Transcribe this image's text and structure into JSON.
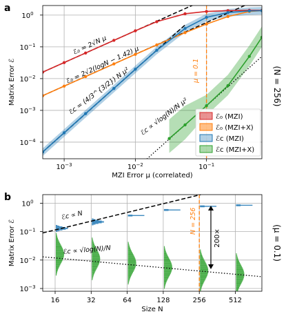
{
  "panel_a": {
    "letter": "a",
    "side_note": "(N = 256)",
    "xlabel": "MZI Error μ (correlated)",
    "ylabel": "Matrix Error ℰ",
    "mu_label": "μ = 0.1",
    "ann_e0_1": "ℰ₀ = 2√N μ",
    "ann_e0_2": "ℰ₀ = 2√2(logN − 1.42) μ",
    "ann_ec_1": "ℰc = (4/3^{3/2}) N μ²",
    "ann_ec_2": "ℰc ∝ √log(N)/N μ²",
    "legend": [
      "ℰ₀ (MZI)",
      "ℰ₀ (MZI+X)",
      "ℰc (MZI)",
      "ℰc (MZI+X)"
    ]
  },
  "panel_b": {
    "letter": "b",
    "side_note": "(μ = 0.1)",
    "xlabel": "Size N",
    "ylabel": "Matrix Error ℰ",
    "ann_lin": "ℰc ∝ N",
    "ann_sqrt": "ℰc ∝ √log(N)/N",
    "n256_label": "N = 256",
    "ratio_label": "200×"
  },
  "colors": {
    "red": "#d62728",
    "orange": "#ff7f0e",
    "blue": "#1f77b4",
    "green": "#2ca02c"
  },
  "chart_data": [
    {
      "type": "line",
      "title": "",
      "xlabel": "MZI Error μ (correlated)",
      "ylabel": "Matrix Error ℰ",
      "xscale": "log",
      "yscale": "log",
      "xlim": [
        0.0005,
        0.6
      ],
      "ylim": [
        3e-05,
        2
      ],
      "grid": true,
      "legend_position": "lower-right",
      "series": [
        {
          "name": "ℰ₀ (MZI)",
          "color": "#d62728",
          "x": [
            0.0005,
            0.001,
            0.002,
            0.005,
            0.01,
            0.02,
            0.05,
            0.1,
            0.2,
            0.4,
            0.6
          ],
          "y": [
            0.016,
            0.032,
            0.064,
            0.16,
            0.32,
            0.62,
            1.1,
            1.3,
            1.38,
            1.41,
            1.41
          ]
        },
        {
          "name": "ℰ₀ (MZI+X)",
          "color": "#ff7f0e",
          "x": [
            0.0005,
            0.001,
            0.002,
            0.005,
            0.01,
            0.02,
            0.05,
            0.1,
            0.2,
            0.4,
            0.6
          ],
          "y": [
            0.0029,
            0.0058,
            0.0116,
            0.029,
            0.058,
            0.115,
            0.28,
            0.52,
            0.9,
            1.3,
            1.38
          ]
        },
        {
          "name": "ℰc (MZI)",
          "color": "#1f77b4",
          "x": [
            0.0005,
            0.001,
            0.002,
            0.005,
            0.01,
            0.02,
            0.05,
            0.1,
            0.2,
            0.4,
            0.6
          ],
          "y": [
            4.9e-05,
            0.000197,
            0.00079,
            0.0049,
            0.0197,
            0.078,
            0.38,
            0.85,
            1.2,
            1.35,
            1.38
          ]
        },
        {
          "name": "ℰc (MZI+X)",
          "color": "#2ca02c",
          "x": [
            0.03,
            0.05,
            0.1,
            0.2,
            0.4,
            0.6
          ],
          "y": [
            0.00013,
            0.00035,
            0.0014,
            0.006,
            0.05,
            0.2
          ]
        }
      ]
    },
    {
      "type": "scatter",
      "title": "",
      "xlabel": "Size N",
      "ylabel": "Matrix Error ℰ",
      "yscale": "log",
      "categories": [
        "16",
        "32",
        "64",
        "128",
        "256",
        "512"
      ],
      "ylim": [
        0.0008,
        2
      ],
      "grid": true,
      "series": [
        {
          "name": "ℰc (MZI)",
          "color": "#1f77b4",
          "values": [
            0.13,
            0.22,
            0.37,
            0.58,
            0.78,
            0.85
          ]
        },
        {
          "name": "ℰc (MZI+X)",
          "color": "#2ca02c",
          "values": [
            0.016,
            0.011,
            0.0078,
            0.0055,
            0.0042,
            0.0031
          ]
        }
      ]
    }
  ]
}
